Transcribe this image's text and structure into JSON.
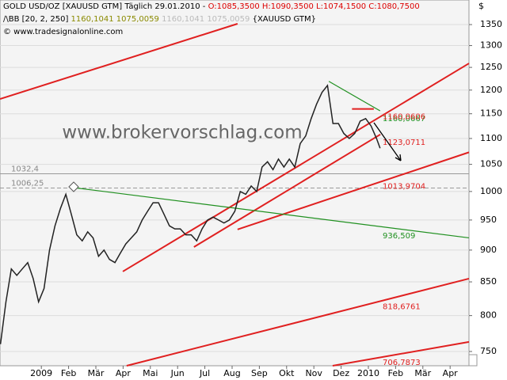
{
  "chart_data": {
    "type": "line",
    "title": "GOLD USD/OZ [XAUUSD GTM] Täglich 29.01.2010 -",
    "ohlc_text": "O:1085,3500 H:1090,3500 L:1074,1500 C:1080,7500",
    "indicator": {
      "name": "BB [20, 2, 250]",
      "values_a": "1160,1041 1075,0059",
      "values_b": "1160,1041 1075,0059",
      "symbol": "{XAUUSD GTM}"
    },
    "source": "© www.tradesignalonline.com",
    "watermark": "www.brokervorschlag.com",
    "currency": "$",
    "color": "#222222",
    "log_scale": true,
    "x": [
      -1.0,
      -0.8,
      -0.6,
      -0.4,
      -0.2,
      0.0,
      0.2,
      0.4,
      0.6,
      0.8,
      1.0,
      1.2,
      1.4,
      1.6,
      1.8,
      2.0,
      2.2,
      2.4,
      2.6,
      2.8,
      3.0,
      3.2,
      3.4,
      3.6,
      3.8,
      4.0,
      4.2,
      4.4,
      4.6,
      4.8,
      5.0,
      5.2,
      5.4,
      5.6,
      5.8,
      6.0,
      6.2,
      6.4,
      6.6,
      6.8,
      7.0,
      7.2,
      7.4,
      7.6,
      7.8,
      8.0,
      8.2,
      8.4,
      8.6,
      8.8,
      9.0,
      9.2,
      9.4,
      9.6,
      9.8,
      10.0,
      10.2,
      10.4,
      10.6,
      10.8,
      11.0,
      11.2,
      11.4,
      11.6,
      11.8,
      12.0,
      12.2,
      12.4,
      12.6,
      12.8,
      12.93
    ],
    "values": [
      760,
      820,
      870,
      860,
      870,
      880,
      855,
      820,
      840,
      900,
      940,
      970,
      995,
      960,
      925,
      915,
      930,
      920,
      890,
      900,
      885,
      880,
      895,
      910,
      920,
      930,
      950,
      965,
      980,
      980,
      960,
      940,
      935,
      935,
      925,
      925,
      915,
      935,
      950,
      955,
      950,
      945,
      950,
      965,
      1000,
      995,
      1010,
      1000,
      1045,
      1055,
      1040,
      1060,
      1045,
      1060,
      1045,
      1090,
      1105,
      1140,
      1170,
      1195,
      1210,
      1130,
      1130,
      1110,
      1100,
      1110,
      1135,
      1140,
      1125,
      1100,
      1080.75
    ],
    "xlim": [
      -1.017,
      16.192
    ],
    "ylim": [
      731,
      1411
    ],
    "yticks": [
      750,
      800,
      850,
      900,
      950,
      1000,
      1050,
      1100,
      1150,
      1200,
      1250,
      1300,
      1350
    ],
    "xticks": [
      {
        "value": 0.5,
        "label": "2009"
      },
      {
        "value": 1.5,
        "label": "Feb"
      },
      {
        "value": 2.5,
        "label": "Mär"
      },
      {
        "value": 3.5,
        "label": "Apr"
      },
      {
        "value": 4.5,
        "label": "Mai"
      },
      {
        "value": 5.5,
        "label": "Jun"
      },
      {
        "value": 6.5,
        "label": "Jul"
      },
      {
        "value": 7.5,
        "label": "Aug"
      },
      {
        "value": 8.5,
        "label": "Sep"
      },
      {
        "value": 9.5,
        "label": "Okt"
      },
      {
        "value": 10.5,
        "label": "Nov"
      },
      {
        "value": 11.5,
        "label": "Dez"
      },
      {
        "value": 12.5,
        "label": "2010"
      },
      {
        "value": 13.5,
        "label": "Feb"
      },
      {
        "value": 14.5,
        "label": "Mär"
      },
      {
        "value": 15.5,
        "label": "Apr"
      }
    ],
    "levels": [
      {
        "label": "1032,4",
        "y": 1032.4,
        "style": "solid"
      },
      {
        "label": "1006,25",
        "y": 1006.25,
        "style": "dashed"
      }
    ],
    "trendlines": [
      {
        "color": "#e02020",
        "x": [
          -1.017,
          7.7
        ],
        "y": [
          1181,
          1352
        ]
      },
      {
        "color": "#e02020",
        "x": [
          3.49,
          16.192
        ],
        "y": [
          866,
          1259
        ]
      },
      {
        "color": "#e02020",
        "label": "1123,0711",
        "x": [
          6.1,
          12.94
        ],
        "y": [
          905,
          1108
        ]
      },
      {
        "color": "#e02020",
        "label": "1013,9704",
        "x": [
          7.7,
          16.192
        ],
        "y": [
          934,
          1073
        ]
      },
      {
        "color": "#e02020",
        "label": "818,6761",
        "x": [
          3.63,
          16.192
        ],
        "y": [
          731,
          855
        ]
      },
      {
        "color": "#e02020",
        "label": "706,7873",
        "x": [
          11.19,
          16.192
        ],
        "y": [
          731,
          763
        ]
      },
      {
        "color": "#209020",
        "label": "936,509",
        "x": [
          1.68,
          16.192
        ],
        "y": [
          1007,
          920
        ]
      },
      {
        "color": "#209020",
        "label": "1160,0667",
        "x": [
          11.05,
          12.93
        ],
        "y": [
          1219,
          1156
        ]
      },
      {
        "color": "#e02020",
        "label": "1160,0606",
        "x": [
          11.9,
          12.7
        ],
        "y": [
          1160,
          1160
        ]
      }
    ]
  }
}
